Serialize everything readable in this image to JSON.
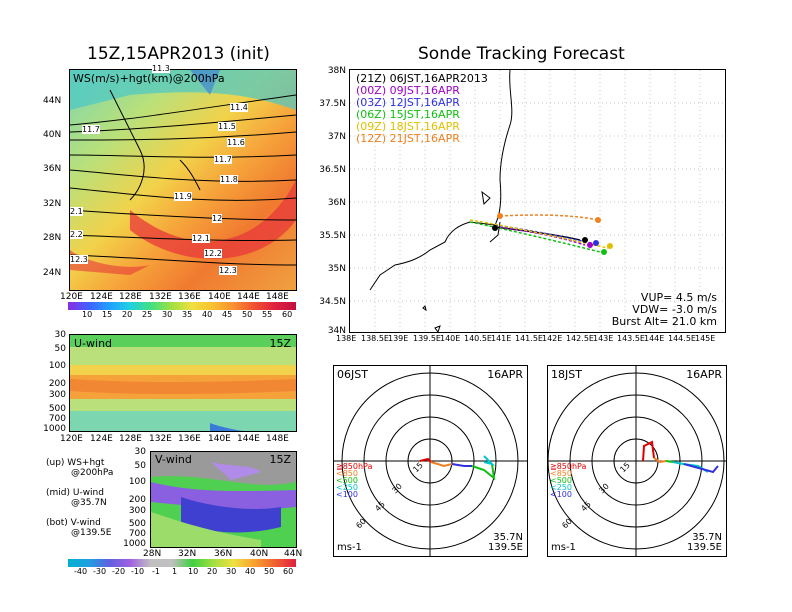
{
  "left": {
    "title": "15Z,15APR2013 (init)",
    "top_panel": {
      "label": "WS(m/s)+hgt(km)@200hPa",
      "lat_ticks": [
        "44N",
        "40N",
        "36N",
        "32N",
        "28N",
        "24N"
      ],
      "lon_ticks": [
        "120E",
        "124E",
        "128E",
        "132E",
        "136E",
        "140E",
        "144E",
        "148E"
      ],
      "contour_labels": [
        "11.4",
        "11.5",
        "11.6",
        "11.7",
        "11.8",
        "11.9",
        "12",
        "12.1",
        "12.2",
        "12.3",
        "11.7",
        "2.1",
        "2.2",
        "12.3",
        "11.3"
      ],
      "colorbar": [
        "10",
        "15",
        "20",
        "25",
        "30",
        "35",
        "40",
        "45",
        "50",
        "55",
        "60"
      ]
    },
    "mid_panel": {
      "label": "U-wind",
      "time": "15Z",
      "p_ticks": [
        "30",
        "50",
        "100",
        "200",
        "300",
        "500",
        "700",
        "1000"
      ],
      "lon_ticks": [
        "120E",
        "124E",
        "128E",
        "132E",
        "136E",
        "140E",
        "144E",
        "148E"
      ]
    },
    "bot_panel": {
      "label": "V-wind",
      "time": "15Z",
      "p_ticks": [
        "30",
        "50",
        "100",
        "200",
        "300",
        "500",
        "700",
        "1000"
      ],
      "lat_ticks": [
        "28N",
        "32N",
        "36N",
        "40N",
        "44N"
      ],
      "colorbar": [
        "-40",
        "-30",
        "-20",
        "-10",
        "-1",
        "1",
        "10",
        "20",
        "30",
        "40",
        "50",
        "60"
      ]
    },
    "legend": {
      "up": "(up) WS+hgt",
      "up2": "@200hPa",
      "mid": "(mid) U-wind",
      "mid2": "@35.7N",
      "bot": "(bot) V-wind",
      "bot2": "@139.5E"
    }
  },
  "right": {
    "title": "Sonde Tracking Forecast",
    "track_map": {
      "lat_ticks": [
        "38N",
        "37.5N",
        "37N",
        "36.5N",
        "36N",
        "35.5N",
        "35N",
        "34.5N",
        "34N"
      ],
      "lon_ticks": [
        "138E",
        "138.5E",
        "139E",
        "139.5E",
        "140E",
        "140.5E",
        "141E",
        "141.5E",
        "142E",
        "142.5E",
        "143E",
        "143.5E",
        "144E",
        "144.5E",
        "145E"
      ],
      "legend": [
        {
          "text": "(21Z) 06JST,16APR2013",
          "color": "#000000"
        },
        {
          "text": "(00Z) 09JST,16APR",
          "color": "#a000c8"
        },
        {
          "text": "(03Z) 12JST,16APR",
          "color": "#3030e0"
        },
        {
          "text": "(06Z) 15JST,16APR",
          "color": "#10c010"
        },
        {
          "text": "(09Z) 18JST,16APR",
          "color": "#e0c000"
        },
        {
          "text": "(12Z) 21JST,16APR",
          "color": "#f08020"
        }
      ],
      "params": [
        "VUP= 4.5 m/s",
        "VDW= -3.0 m/s",
        "Burst Alt= 21.0 km"
      ]
    },
    "hodo1": {
      "time": "06JST",
      "date": "16APR",
      "rings": [
        "15",
        "30",
        "45",
        "60"
      ],
      "levels": [
        "≧850hPa",
        "<850",
        "<500",
        "<250",
        "<100"
      ],
      "unit": "ms-1",
      "lat": "35.7N",
      "lon": "139.5E"
    },
    "hodo2": {
      "time": "18JST",
      "date": "16APR",
      "rings": [
        "15",
        "30",
        "45",
        "60"
      ],
      "levels": [
        "≧850hPa",
        "<850",
        "<500",
        "<250",
        "<100"
      ],
      "unit": "ms-1",
      "lat": "35.7N",
      "lon": "139.5E"
    }
  },
  "colors": {
    "level_red": "#e00000",
    "level_orange": "#f08020",
    "level_green": "#10c010",
    "level_cyan": "#00c8c8",
    "level_blue": "#3030e0"
  }
}
